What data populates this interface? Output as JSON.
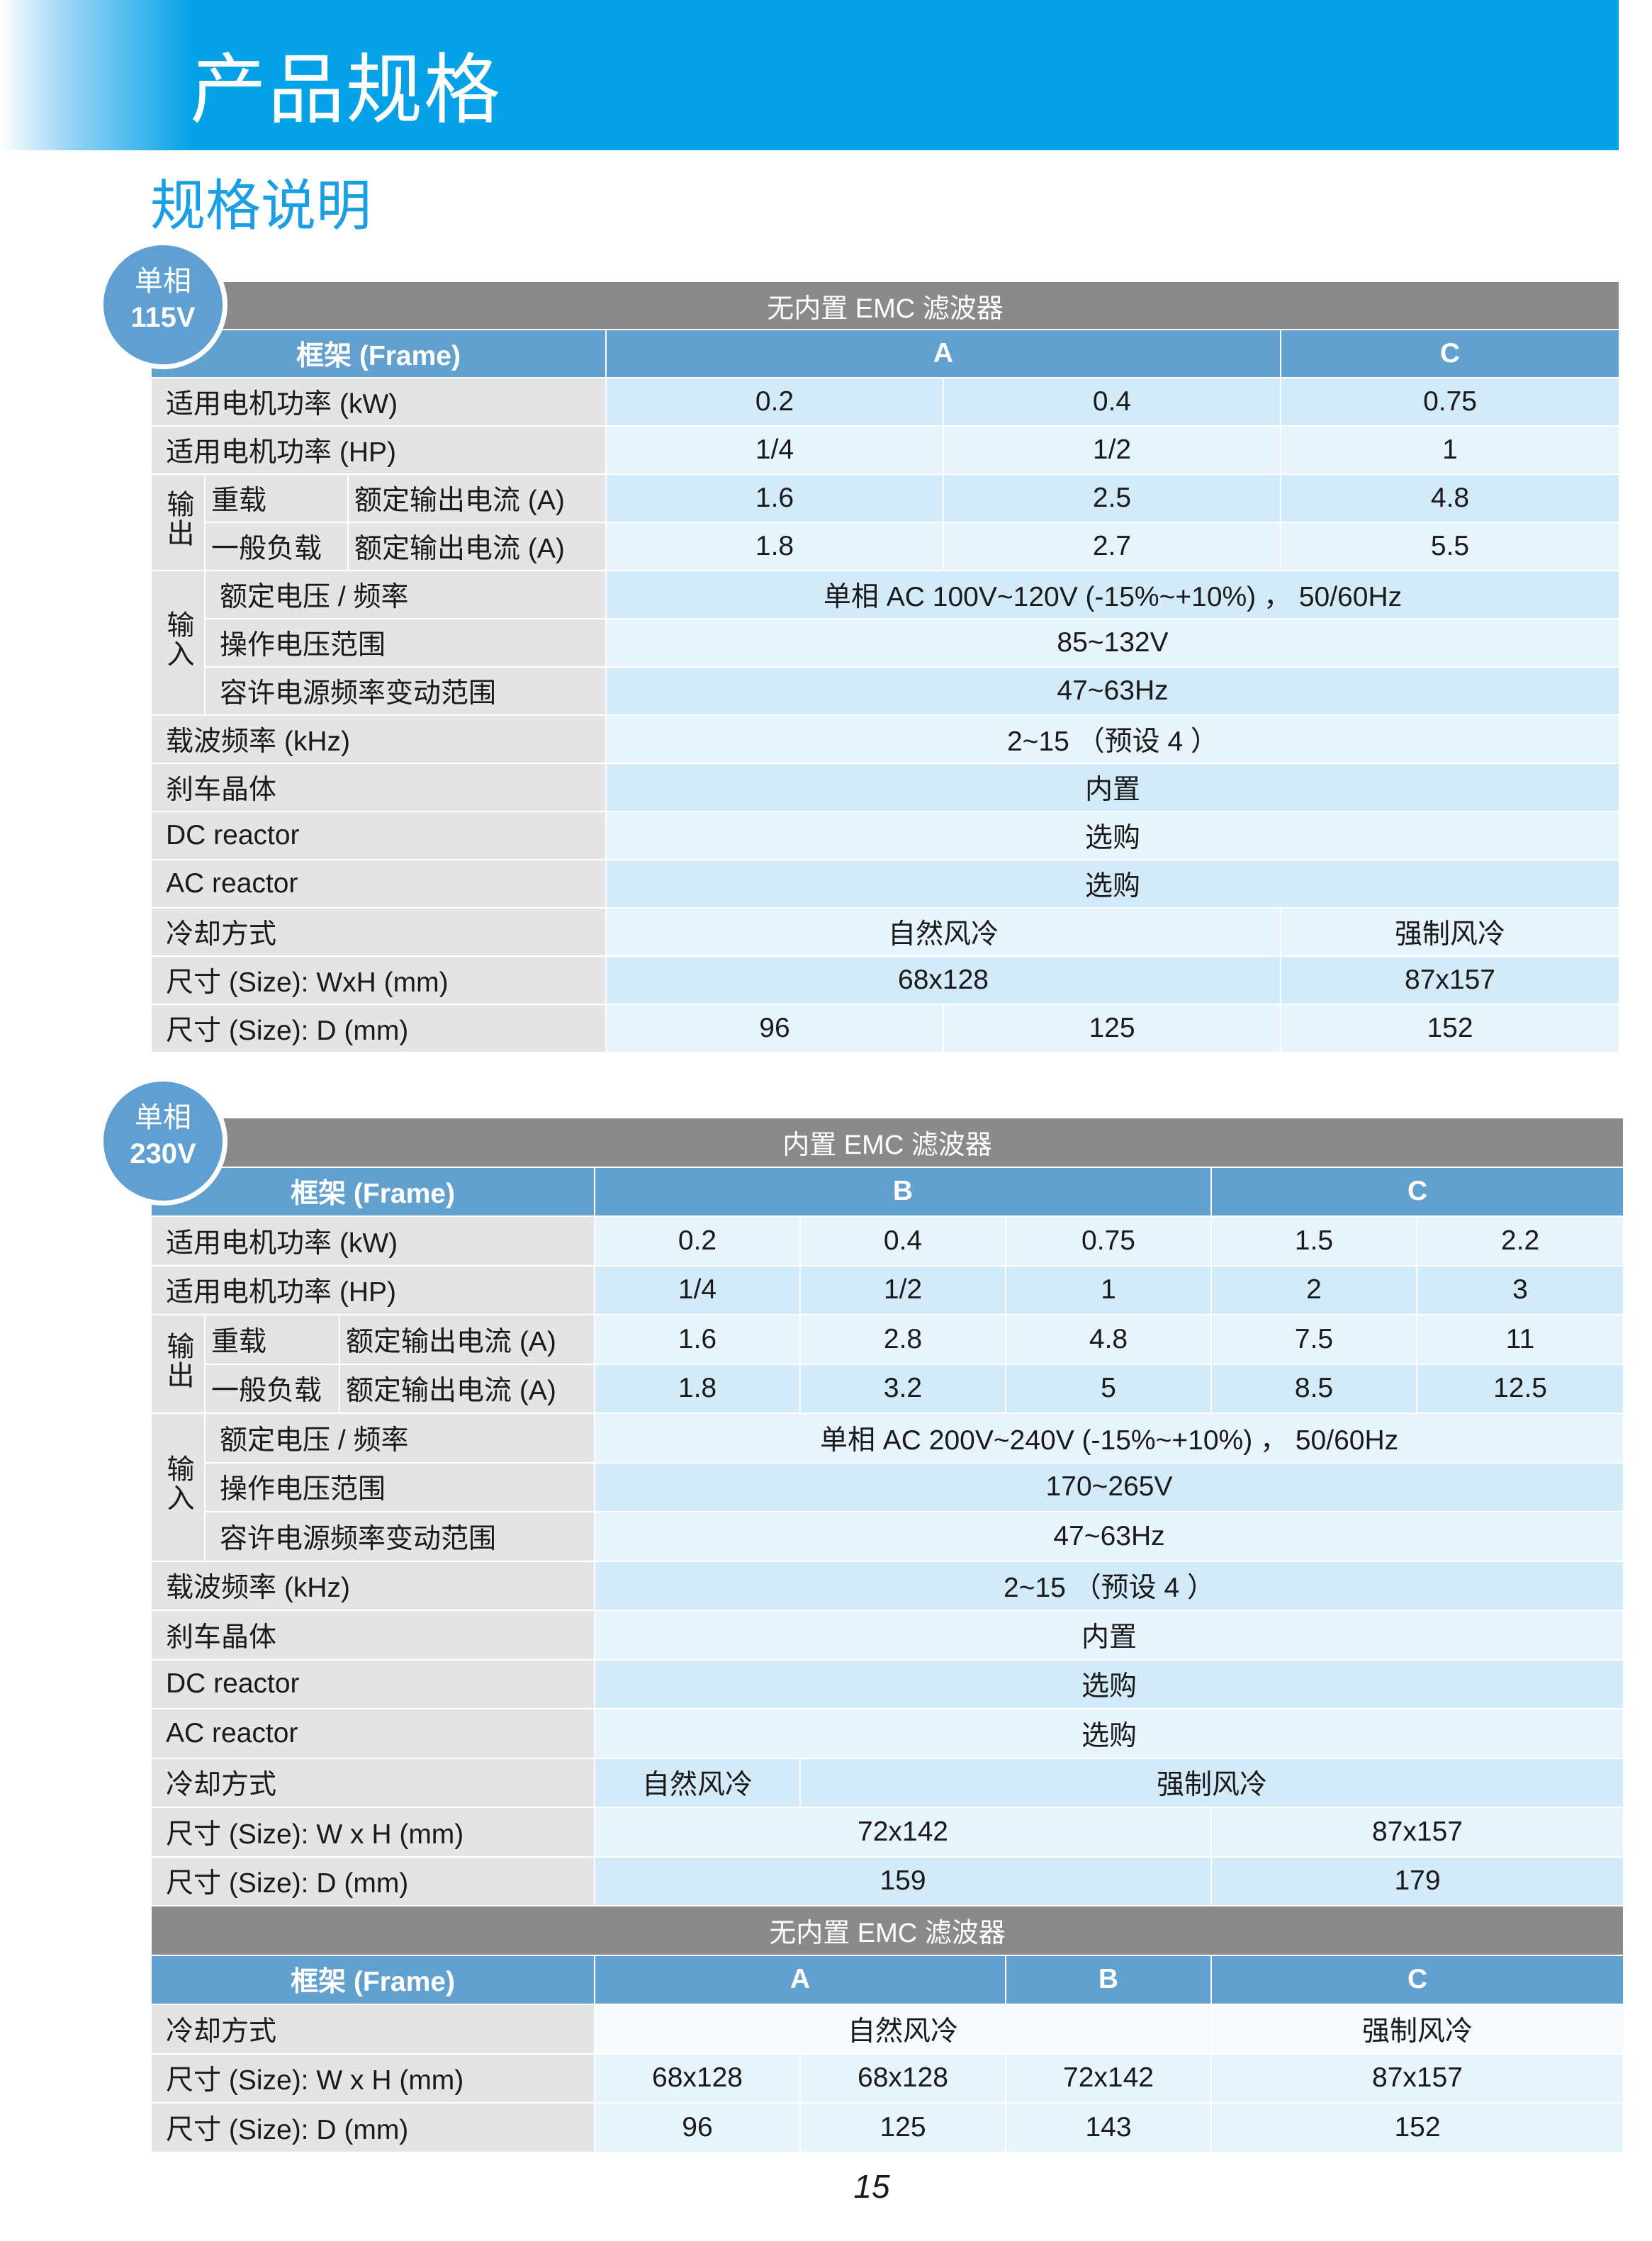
{
  "header": {
    "title": "产品规格",
    "subtitle": "规格说明"
  },
  "colors": {
    "banner": "#05a2e8",
    "section_header": "#8a8a8a",
    "frame_row": "#62a0d0",
    "label_bg": "#e4e4e4",
    "row_dark": "#d3eaf8",
    "row_light": "#e8f4fc"
  },
  "badges": [
    {
      "line1": "单相",
      "line2": "115V"
    },
    {
      "line1": "单相",
      "line2": "230V"
    }
  ],
  "tables": [
    {
      "rows": [
        {
          "cells": [
            "无内置 EMC 滤波器"
          ]
        },
        {
          "cells": [
            "框架 (Frame)",
            "A",
            "C"
          ]
        },
        {
          "cells": [
            "适用电机功率 (kW)",
            "0.2",
            "0.4",
            "0.75"
          ]
        },
        {
          "cells": [
            "适用电机功率 (HP)",
            "1/4",
            "1/2",
            "1"
          ]
        },
        {
          "cells": [
            "输出",
            "重载",
            "额定输出电流 (A)",
            "1.6",
            "2.5",
            "4.8"
          ]
        },
        {
          "cells": [
            "一般负载",
            "额定输出电流 (A)",
            "1.8",
            "2.7",
            "5.5"
          ]
        },
        {
          "cells": [
            "输入",
            "额定电压 / 频率",
            "单相 AC 100V~120V (-15%~+10%) ， 50/60Hz"
          ]
        },
        {
          "cells": [
            "操作电压范围",
            "85~132V"
          ]
        },
        {
          "cells": [
            "容许电源频率变动范围",
            "47~63Hz"
          ]
        },
        {
          "cells": [
            "载波频率 (kHz)",
            "2~15 （预设 4 ）"
          ]
        },
        {
          "cells": [
            "刹车晶体",
            "内置"
          ]
        },
        {
          "cells": [
            "DC reactor",
            "选购"
          ]
        },
        {
          "cells": [
            "AC reactor",
            "选购"
          ]
        },
        {
          "cells": [
            "冷却方式",
            "自然风冷",
            "强制风冷"
          ]
        },
        {
          "cells": [
            "尺寸 (Size): WxH (mm)",
            "68x128",
            "87x157"
          ]
        },
        {
          "cells": [
            "尺寸 (Size): D (mm)",
            "96",
            "125",
            "152"
          ]
        }
      ]
    },
    {
      "rows": [
        {
          "cells": [
            "内置 EMC 滤波器"
          ]
        },
        {
          "cells": [
            "框架 (Frame)",
            "B",
            "C"
          ]
        },
        {
          "cells": [
            "适用电机功率 (kW)",
            "0.2",
            "0.4",
            "0.75",
            "1.5",
            "2.2"
          ]
        },
        {
          "cells": [
            "适用电机功率 (HP)",
            "1/4",
            "1/2",
            "1",
            "2",
            "3"
          ]
        },
        {
          "cells": [
            "输出",
            "重载",
            "额定输出电流 (A)",
            "1.6",
            "2.8",
            "4.8",
            "7.5",
            "11"
          ]
        },
        {
          "cells": [
            "一般负载",
            "额定输出电流 (A)",
            "1.8",
            "3.2",
            "5",
            "8.5",
            "12.5"
          ]
        },
        {
          "cells": [
            "输入",
            "额定电压 / 频率",
            "单相 AC 200V~240V (-15%~+10%) ， 50/60Hz"
          ]
        },
        {
          "cells": [
            "操作电压范围",
            "170~265V"
          ]
        },
        {
          "cells": [
            "容许电源频率变动范围",
            "47~63Hz"
          ]
        },
        {
          "cells": [
            "载波频率 (kHz)",
            "2~15 （预设 4 ）"
          ]
        },
        {
          "cells": [
            "刹车晶体",
            "内置"
          ]
        },
        {
          "cells": [
            "DC reactor",
            "选购"
          ]
        },
        {
          "cells": [
            "AC reactor",
            "选购"
          ]
        },
        {
          "cells": [
            "冷却方式",
            "自然风冷",
            "强制风冷"
          ]
        },
        {
          "cells": [
            "尺寸 (Size): W x H (mm)",
            "72x142",
            "87x157"
          ]
        },
        {
          "cells": [
            "尺寸 (Size): D (mm)",
            "159",
            "179"
          ]
        },
        {
          "cells": [
            "无内置 EMC 滤波器"
          ]
        },
        {
          "cells": [
            "框架 (Frame)",
            "A",
            "B",
            "C"
          ]
        },
        {
          "cells": [
            "冷却方式",
            "自然风冷",
            "强制风冷"
          ]
        },
        {
          "cells": [
            "尺寸 (Size): W x H (mm)",
            "68x128",
            "68x128",
            "72x142",
            "87x157"
          ]
        },
        {
          "cells": [
            "尺寸 (Size): D (mm)",
            "96",
            "125",
            "143",
            "152"
          ]
        }
      ]
    }
  ],
  "page_number": "15"
}
